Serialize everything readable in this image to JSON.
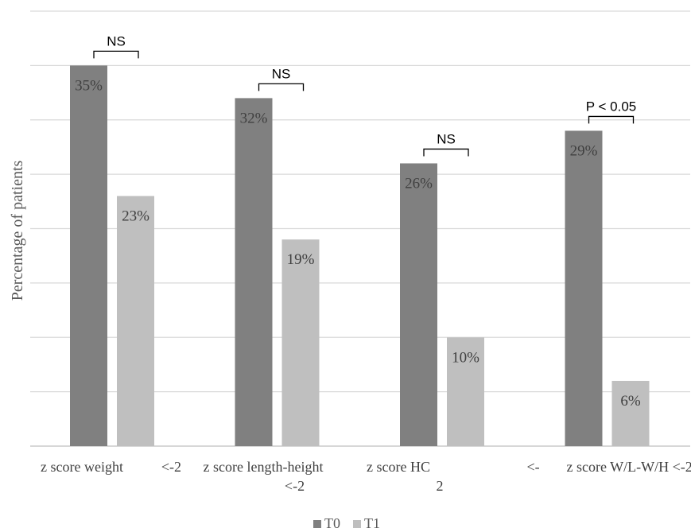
{
  "chart_data": {
    "type": "bar",
    "ylabel": "Percentage of patients",
    "xlabel": "",
    "ylim": [
      0,
      40
    ],
    "grid": true,
    "legend_position": "bottom-center",
    "categories": [
      [
        "z score weight",
        "<-2"
      ],
      [
        "z score length-height",
        "<-2"
      ],
      [
        "z score HC",
        "2"
      ],
      [
        "<-",
        "z score W/L-W/H <-2"
      ]
    ],
    "series": [
      {
        "name": "T0",
        "color": "#808080",
        "values": [
          35,
          32,
          26,
          29
        ],
        "labels": [
          "35%",
          "32%",
          "26%",
          "29%"
        ]
      },
      {
        "name": "T1",
        "color": "#bfbfbf",
        "values": [
          23,
          19,
          10,
          6
        ],
        "labels": [
          "23%",
          "19%",
          "10%",
          "6%"
        ]
      }
    ],
    "significance": [
      "NS",
      "NS",
      "NS",
      "P < 0.05"
    ]
  }
}
